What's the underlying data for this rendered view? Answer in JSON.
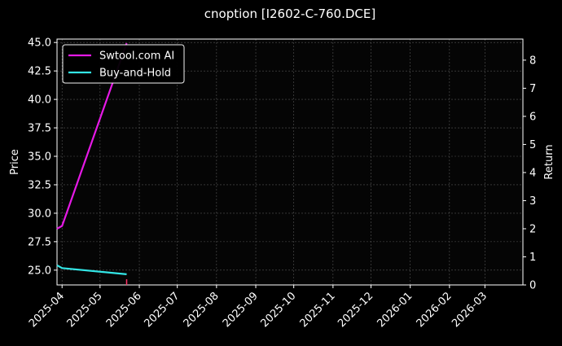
{
  "chart_data": {
    "type": "line",
    "title": "cnoption [I2602-C-760.DCE]",
    "ylabel_left": "Price",
    "ylabel_right": "Return",
    "xlim": [
      "2025-03-28",
      "2026-03-31"
    ],
    "ylim_left": [
      23.7,
      45.3
    ],
    "ylim_right": [
      0,
      8.75
    ],
    "x_ticks": [
      "2025-04",
      "2025-05",
      "2025-06",
      "2025-07",
      "2025-08",
      "2025-09",
      "2025-10",
      "2025-11",
      "2025-12",
      "2026-01",
      "2026-02",
      "2026-03"
    ],
    "y_ticks_left": [
      "25.0",
      "27.5",
      "30.0",
      "32.5",
      "35.0",
      "37.5",
      "40.0",
      "42.5",
      "45.0"
    ],
    "y_ticks_right": [
      "0",
      "1",
      "2",
      "3",
      "4",
      "5",
      "6",
      "7",
      "8"
    ],
    "grid": true,
    "legend_position": "top-left",
    "series": [
      {
        "name": "Swtool.com AI",
        "axis": "right",
        "color": "#e619e6",
        "x": [
          "2025-03-28",
          "2025-04-01",
          "2025-05-22"
        ],
        "y": [
          2.0,
          2.1,
          8.6
        ]
      },
      {
        "name": "Buy-and-Hold",
        "axis": "right",
        "color": "#33e6e6",
        "x": [
          "2025-03-28",
          "2025-04-01",
          "2025-05-22"
        ],
        "y": [
          0.7,
          0.6,
          0.38
        ]
      }
    ],
    "price_series": {
      "axis": "left",
      "color": "#ff3366",
      "x": [
        "2025-05-22",
        "2025-05-22"
      ],
      "y": [
        23.7,
        24.2
      ]
    }
  }
}
